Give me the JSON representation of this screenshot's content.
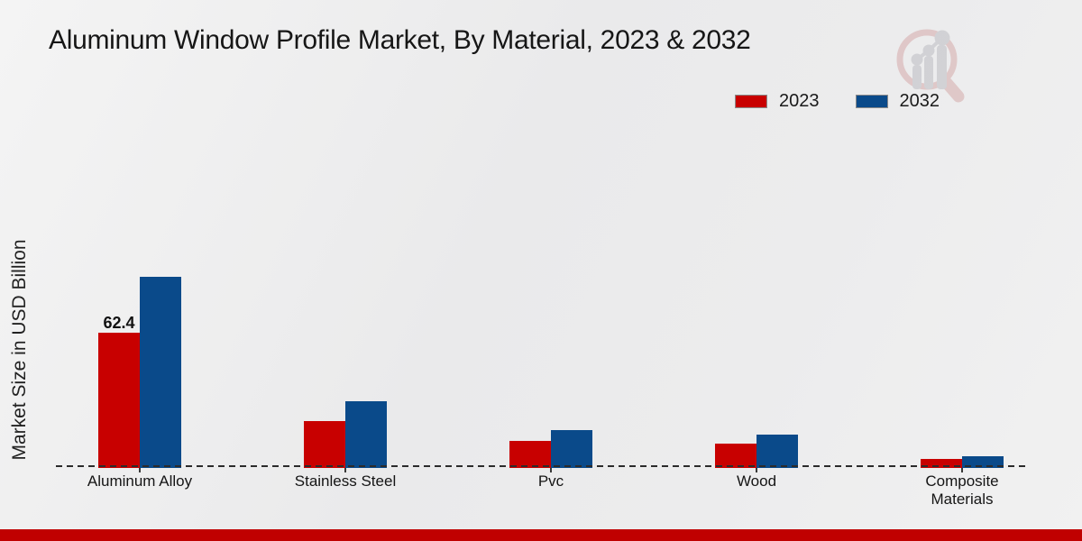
{
  "chart_data": {
    "type": "bar",
    "title": "Aluminum Window Profile Market, By Material, 2023 & 2032",
    "ylabel": "Market Size in USD Billion",
    "categories": [
      "Aluminum Alloy",
      "Stainless Steel",
      "Pvc",
      "Wood",
      "Composite Materials"
    ],
    "series": [
      {
        "name": "2023",
        "color": "#c80000",
        "values": [
          62.4,
          21.0,
          11.5,
          10.2,
          2.9
        ],
        "point_labels": [
          "62.4",
          "",
          "",
          "",
          ""
        ]
      },
      {
        "name": "2032",
        "color": "#0a4a8a",
        "values": [
          88.8,
          30.4,
          16.8,
          14.6,
          4.3
        ],
        "point_labels": [
          "",
          "",
          "",
          "",
          ""
        ]
      }
    ],
    "legend_position": "top-right",
    "grid": false,
    "baseline_style": "dashed",
    "baseline_color": "#2b2b2b",
    "ylim": [
      0,
      100
    ]
  },
  "footer": {
    "strip_color": "#c00000"
  },
  "logo": {
    "name": "magnifier-bar-chart-watermark",
    "ring_color": "#d8b2b2",
    "bars_color": "#c2c2c7"
  }
}
